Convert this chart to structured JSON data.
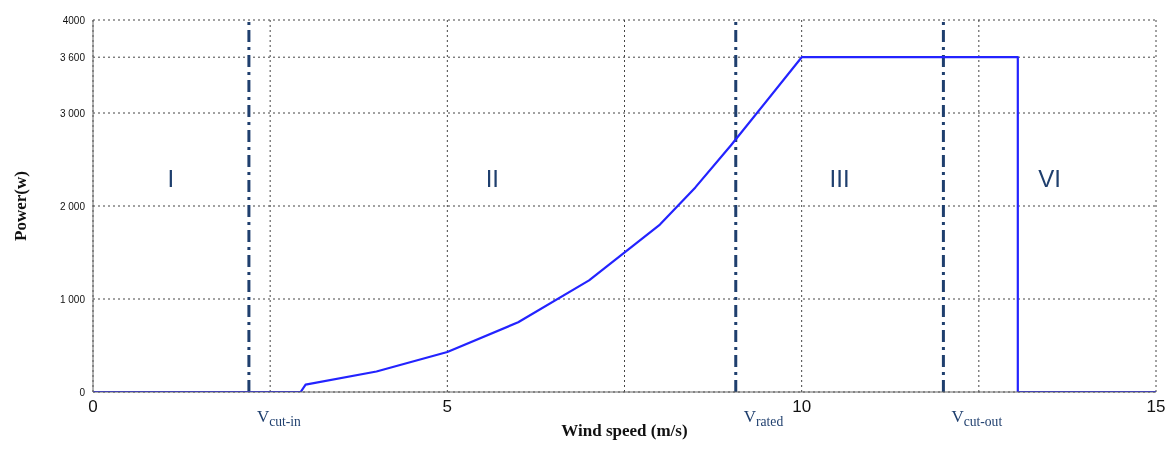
{
  "chart_data": {
    "type": "line",
    "xlabel": "Wind speed (m/s)",
    "ylabel": "Power(w)",
    "x": [
      0,
      2.93,
      3,
      4,
      5,
      6,
      7,
      8,
      8.5,
      9,
      10,
      13.05,
      13.05,
      15
    ],
    "series": [
      {
        "color": "#2323ff",
        "values": [
          0,
          0,
          80,
          220,
          430,
          750,
          1200,
          1800,
          2200,
          2650,
          3600,
          3600,
          0,
          0
        ]
      }
    ],
    "xlim": [
      0,
      15
    ],
    "xticks": [
      0,
      {
        "value": 2.5,
        "label": null
      },
      5,
      {
        "value": 7.5,
        "label": null
      },
      10,
      {
        "value": 12.5,
        "label": null
      },
      15
    ],
    "ylim": [
      0,
      4000
    ],
    "yticks": [
      0,
      {
        "value": 1000,
        "label": "1 000"
      },
      {
        "value": 2000,
        "label": "2 000"
      },
      {
        "value": 3000,
        "label": "3 000"
      },
      {
        "value": 3600,
        "label": "3 600"
      },
      4000
    ],
    "grid": true,
    "marker": "none",
    "line_style": "solid",
    "ref_lines": [
      {
        "axis": "x",
        "value": 2.2,
        "label": "V$_{cut-in}$",
        "color": "#1f3f6e",
        "line_style": "dashdot"
      },
      {
        "axis": "x",
        "value": 9.07,
        "label": "V$_{rated}$",
        "color": "#1f3f6e",
        "line_style": "dashdot"
      },
      {
        "axis": "x",
        "value": 12,
        "label": "V$_{cut-out}$",
        "color": "#1f3f6e",
        "line_style": "dashdot"
      }
    ],
    "annotations": [
      "I",
      "II",
      "III",
      "VI"
    ]
  }
}
